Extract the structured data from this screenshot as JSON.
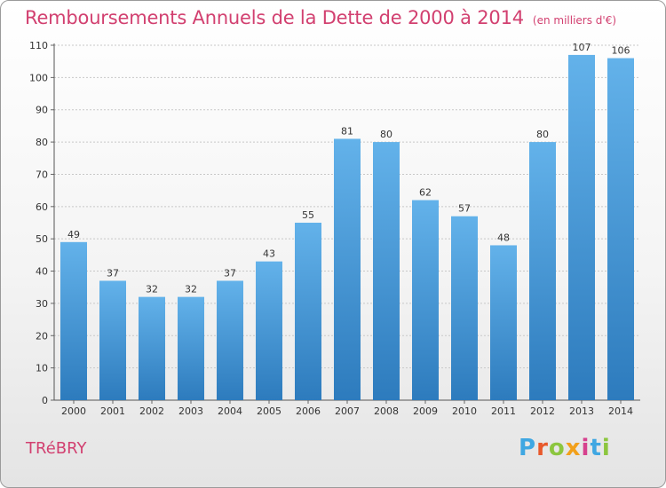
{
  "title": "Remboursements Annuels de la Dette de 2000 à 2014",
  "subtitle": "(en milliers d'€)",
  "location_label": "TRéBRY",
  "brand": {
    "text": "Proxiti",
    "letter_colors": [
      "#3fa7e2",
      "#e8592b",
      "#8cc63f",
      "#f2a01b",
      "#d6418e",
      "#3fa7e2",
      "#8cc63f"
    ]
  },
  "colors": {
    "title": "#d24070",
    "bar_light": "#63b2ea",
    "bar_dark": "#2d7bbd"
  },
  "chart_data": {
    "type": "bar",
    "categories": [
      "2000",
      "2001",
      "2002",
      "2003",
      "2004",
      "2005",
      "2006",
      "2007",
      "2008",
      "2009",
      "2010",
      "2011",
      "2012",
      "2013",
      "2014"
    ],
    "values": [
      49,
      37,
      32,
      32,
      37,
      43,
      55,
      81,
      80,
      62,
      57,
      48,
      80,
      107,
      106
    ],
    "ylim": [
      0,
      110
    ],
    "yticks": [
      0,
      10,
      20,
      30,
      40,
      50,
      60,
      70,
      80,
      90,
      100,
      110
    ],
    "grid": true,
    "xlabel": "",
    "ylabel": ""
  }
}
